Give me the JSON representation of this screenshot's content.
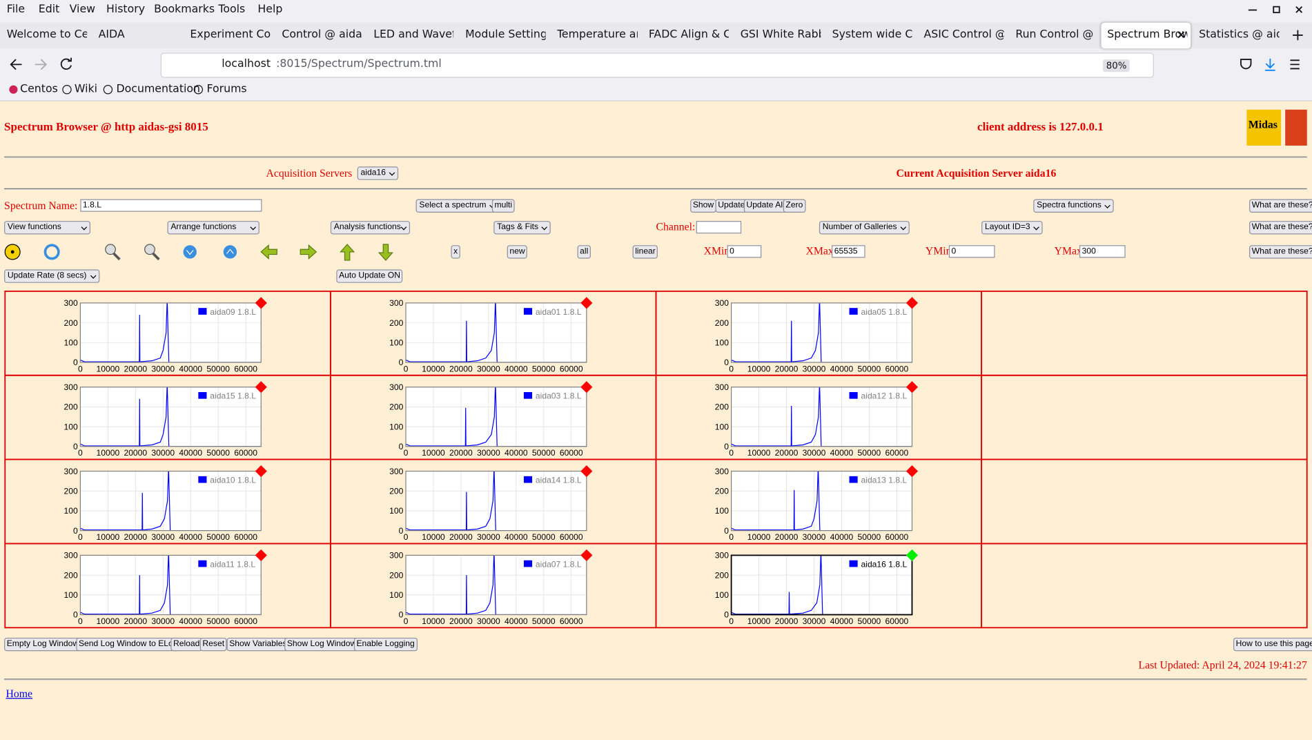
{
  "menu": [
    "File",
    "Edit",
    "View",
    "History",
    "Bookmarks",
    "Tools",
    "Help"
  ],
  "tabs": [
    "Welcome to Cent",
    "AIDA",
    "Experiment Contr",
    "Control @ aidas-",
    "LED and Wavefor",
    "Module Settings",
    "Temperature and",
    "FADC Align & Co",
    "GSI White Rabbit",
    "System wide Che",
    "ASIC Control @ a",
    "Run Control @ ai",
    "Spectrum Brow",
    "Statistics @ aida"
  ],
  "address": {
    "host": "localhost",
    "path": ":8015/Spectrum/Spectrum.tml",
    "zoom": "80%"
  },
  "bookmarks": [
    "Centos",
    "Wiki",
    "Documentation",
    "Forums"
  ],
  "header": {
    "title": "Spectrum Browser @ http aidas-gsi 8015",
    "client": "client address is 127.0.0.1",
    "logo": "Midas"
  },
  "servers": {
    "label": "Acquisition Servers",
    "selected": "aida16",
    "current": "Current Acquisition Server aida16"
  },
  "controls": {
    "spectrum_label": "Spectrum Name:",
    "spectrum_name": "1.8.L",
    "select_spectrum": "Select a spectrum",
    "multi": "multi",
    "show": "Show",
    "update": "Update",
    "update_all": "Update All",
    "zero": "Zero",
    "spectra_functions": "Spectra functions",
    "help": "What are these?",
    "view_functions": "View functions",
    "arrange_functions": "Arrange functions",
    "analysis_functions": "Analysis functions",
    "tags_fits": "Tags & Fits",
    "channel_label": "Channel:",
    "galleries": "Number of Galleries",
    "layout": "Layout ID=3",
    "x": "x",
    "new": "new",
    "all": "all",
    "scale": "linear",
    "xmin_label": "XMin",
    "xmin": "0",
    "xmax_label": "XMax",
    "xmax": "65535",
    "ymin_label": "YMin",
    "ymin": "0",
    "ymax_label": "YMax",
    "ymax": "300",
    "update_rate": "Update Rate (8 secs)",
    "auto_update": "Auto Update ON"
  },
  "chart_data": [
    {
      "type": "line",
      "grid": true,
      "frame_color": "#808080",
      "marker_color": "#ff0000",
      "xlim": [
        0,
        65535
      ],
      "xticks": [
        0,
        10000,
        20000,
        30000,
        40000,
        50000,
        60000
      ],
      "ylim": [
        0,
        300
      ],
      "yticks": [
        0,
        100,
        200,
        300
      ],
      "series": [
        {
          "name": "aida09 1.8.L",
          "color": "#0000ff",
          "x": [
            0,
            1500,
            21400,
            21500,
            21600,
            26000,
            29000,
            30000,
            31100,
            31500,
            32100,
            65535
          ],
          "values": [
            12,
            3,
            3,
            240,
            3,
            8,
            22,
            60,
            150,
            320,
            0,
            0
          ]
        }
      ]
    },
    {
      "type": "line",
      "grid": true,
      "frame_color": "#808080",
      "marker_color": "#ff0000",
      "xlim": [
        0,
        65535
      ],
      "xticks": [
        0,
        10000,
        20000,
        30000,
        40000,
        50000,
        60000
      ],
      "ylim": [
        0,
        300
      ],
      "yticks": [
        0,
        100,
        200,
        300
      ],
      "series": [
        {
          "name": "aida01 1.8.L",
          "color": "#0000ff",
          "x": [
            0,
            1500,
            21900,
            22000,
            22100,
            26000,
            29000,
            31000,
            32100,
            32500,
            33100,
            65535
          ],
          "values": [
            12,
            3,
            3,
            210,
            3,
            8,
            22,
            60,
            150,
            320,
            0,
            0
          ]
        }
      ]
    },
    {
      "type": "line",
      "grid": true,
      "frame_color": "#808080",
      "marker_color": "#ff0000",
      "xlim": [
        0,
        65535
      ],
      "xticks": [
        0,
        10000,
        20000,
        30000,
        40000,
        50000,
        60000
      ],
      "ylim": [
        0,
        300
      ],
      "yticks": [
        0,
        100,
        200,
        300
      ],
      "series": [
        {
          "name": "aida05 1.8.L",
          "color": "#0000ff",
          "x": [
            0,
            1500,
            21700,
            21800,
            21900,
            26000,
            29000,
            30500,
            31600,
            32000,
            32600,
            65535
          ],
          "values": [
            12,
            3,
            3,
            210,
            3,
            8,
            22,
            60,
            150,
            320,
            0,
            0
          ]
        }
      ]
    },
    {
      "type": "line",
      "grid": true,
      "frame_color": "#808080",
      "marker_color": "#ff0000",
      "xlim": [
        0,
        65535
      ],
      "xticks": [
        0,
        10000,
        20000,
        30000,
        40000,
        50000,
        60000
      ],
      "ylim": [
        0,
        300
      ],
      "yticks": [
        0,
        100,
        200,
        300
      ],
      "series": [
        {
          "name": "aida15 1.8.L",
          "color": "#0000ff",
          "x": [
            0,
            1500,
            21400,
            21500,
            21600,
            26000,
            29000,
            30000,
            31100,
            31500,
            32100,
            65535
          ],
          "values": [
            12,
            3,
            3,
            240,
            3,
            8,
            22,
            60,
            150,
            320,
            0,
            0
          ]
        }
      ]
    },
    {
      "type": "line",
      "grid": true,
      "frame_color": "#808080",
      "marker_color": "#ff0000",
      "xlim": [
        0,
        65535
      ],
      "xticks": [
        0,
        10000,
        20000,
        30000,
        40000,
        50000,
        60000
      ],
      "ylim": [
        0,
        300
      ],
      "yticks": [
        0,
        100,
        200,
        300
      ],
      "series": [
        {
          "name": "aida03 1.8.L",
          "color": "#0000ff",
          "x": [
            0,
            1500,
            21600,
            21700,
            21800,
            26000,
            29000,
            31000,
            32100,
            32500,
            33100,
            65535
          ],
          "values": [
            12,
            3,
            3,
            195,
            3,
            8,
            22,
            60,
            150,
            320,
            0,
            0
          ]
        }
      ]
    },
    {
      "type": "line",
      "grid": true,
      "frame_color": "#808080",
      "marker_color": "#ff0000",
      "xlim": [
        0,
        65535
      ],
      "xticks": [
        0,
        10000,
        20000,
        30000,
        40000,
        50000,
        60000
      ],
      "ylim": [
        0,
        300
      ],
      "yticks": [
        0,
        100,
        200,
        300
      ],
      "series": [
        {
          "name": "aida12 1.8.L",
          "color": "#0000ff",
          "x": [
            0,
            1500,
            21700,
            21800,
            21900,
            26000,
            29000,
            30500,
            31600,
            32000,
            32600,
            65535
          ],
          "values": [
            12,
            3,
            3,
            205,
            3,
            8,
            22,
            60,
            150,
            320,
            0,
            0
          ]
        }
      ]
    },
    {
      "type": "line",
      "grid": true,
      "frame_color": "#808080",
      "marker_color": "#ff0000",
      "xlim": [
        0,
        65535
      ],
      "xticks": [
        0,
        10000,
        20000,
        30000,
        40000,
        50000,
        60000
      ],
      "ylim": [
        0,
        300
      ],
      "yticks": [
        0,
        100,
        200,
        300
      ],
      "series": [
        {
          "name": "aida10 1.8.L",
          "color": "#0000ff",
          "x": [
            0,
            1500,
            22400,
            22500,
            22600,
            26000,
            29000,
            30500,
            31600,
            32000,
            32600,
            65535
          ],
          "values": [
            12,
            3,
            3,
            190,
            3,
            8,
            22,
            60,
            150,
            320,
            0,
            0
          ]
        }
      ]
    },
    {
      "type": "line",
      "grid": true,
      "frame_color": "#808080",
      "marker_color": "#ff0000",
      "xlim": [
        0,
        65535
      ],
      "xticks": [
        0,
        10000,
        20000,
        30000,
        40000,
        50000,
        60000
      ],
      "ylim": [
        0,
        300
      ],
      "yticks": [
        0,
        100,
        200,
        300
      ],
      "series": [
        {
          "name": "aida14 1.8.L",
          "color": "#0000ff",
          "x": [
            0,
            1500,
            21900,
            22000,
            22100,
            26000,
            29000,
            30500,
            31600,
            32000,
            32600,
            65535
          ],
          "values": [
            12,
            3,
            3,
            195,
            3,
            8,
            22,
            60,
            150,
            320,
            0,
            0
          ]
        }
      ]
    },
    {
      "type": "line",
      "grid": true,
      "frame_color": "#808080",
      "marker_color": "#ff0000",
      "xlim": [
        0,
        65535
      ],
      "xticks": [
        0,
        10000,
        20000,
        30000,
        40000,
        50000,
        60000
      ],
      "ylim": [
        0,
        300
      ],
      "yticks": [
        0,
        100,
        200,
        300
      ],
      "series": [
        {
          "name": "aida13 1.8.L",
          "color": "#0000ff",
          "x": [
            0,
            1500,
            22700,
            22800,
            22900,
            26000,
            29000,
            30000,
            31100,
            31500,
            32100,
            65535
          ],
          "values": [
            12,
            3,
            3,
            205,
            3,
            8,
            22,
            60,
            150,
            320,
            0,
            0
          ]
        }
      ]
    },
    {
      "type": "line",
      "grid": true,
      "frame_color": "#808080",
      "marker_color": "#ff0000",
      "xlim": [
        0,
        65535
      ],
      "xticks": [
        0,
        10000,
        20000,
        30000,
        40000,
        50000,
        60000
      ],
      "ylim": [
        0,
        300
      ],
      "yticks": [
        0,
        100,
        200,
        300
      ],
      "series": [
        {
          "name": "aida11 1.8.L",
          "color": "#0000ff",
          "x": [
            0,
            1500,
            21400,
            21500,
            21600,
            26000,
            29000,
            30500,
            31600,
            32000,
            32600,
            65535
          ],
          "values": [
            12,
            3,
            3,
            200,
            3,
            8,
            22,
            60,
            150,
            320,
            0,
            0
          ]
        }
      ]
    },
    {
      "type": "line",
      "grid": true,
      "frame_color": "#808080",
      "marker_color": "#ff0000",
      "xlim": [
        0,
        65535
      ],
      "xticks": [
        0,
        10000,
        20000,
        30000,
        40000,
        50000,
        60000
      ],
      "ylim": [
        0,
        300
      ],
      "yticks": [
        0,
        100,
        200,
        300
      ],
      "series": [
        {
          "name": "aida07 1.8.L",
          "color": "#0000ff",
          "x": [
            0,
            1500,
            21900,
            22000,
            22100,
            26000,
            29000,
            30500,
            31600,
            32000,
            32600,
            65535
          ],
          "values": [
            12,
            3,
            3,
            200,
            3,
            8,
            22,
            60,
            150,
            320,
            0,
            0
          ]
        }
      ]
    },
    {
      "type": "line",
      "grid": true,
      "frame_color": "#000000",
      "marker_color": "#00ee00",
      "xlim": [
        0,
        65535
      ],
      "xticks": [
        0,
        10000,
        20000,
        30000,
        40000,
        50000,
        60000
      ],
      "ylim": [
        0,
        300
      ],
      "yticks": [
        0,
        100,
        200,
        300
      ],
      "series": [
        {
          "name": "aida16 1.8.L",
          "color": "#0000ff",
          "x": [
            0,
            1500,
            20900,
            21000,
            21100,
            26000,
            29000,
            31000,
            32100,
            32500,
            33100,
            65535
          ],
          "values": [
            12,
            3,
            3,
            115,
            3,
            8,
            22,
            60,
            150,
            320,
            0,
            0
          ]
        }
      ]
    }
  ],
  "footer": {
    "buttons": [
      "Empty Log Window",
      "Send Log Window to ELog",
      "Reload",
      "Reset",
      "Show Variables",
      "Show Log Window",
      "Enable Logging"
    ],
    "howto": "How to use this page",
    "updated": "Last Updated: April 24, 2024 19:41:27",
    "home": "Home"
  }
}
